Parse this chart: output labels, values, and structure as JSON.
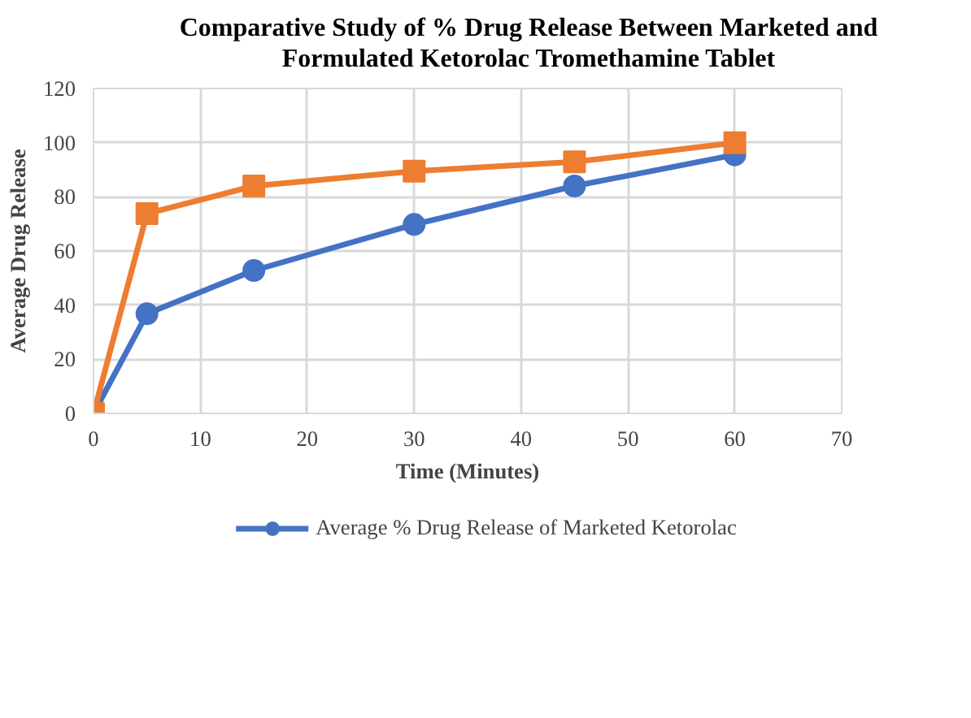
{
  "chart_data": {
    "type": "line",
    "title": "Comparative Study of % Drug Release Between Marketed and Formulated Ketorolac Tromethamine Tablet",
    "xlabel": "Time (Minutes)",
    "ylabel": "Average Drug Release",
    "x": [
      0,
      5,
      15,
      30,
      45,
      60
    ],
    "series": [
      {
        "name": "Average % Drug Release of Marketed Ketorolac",
        "color": "#4472c4",
        "marker": "circle",
        "values": [
          0,
          36.8,
          52.8,
          69.8,
          84,
          95.5
        ]
      },
      {
        "color": "#ed7d31",
        "marker": "square",
        "values": [
          0,
          73.8,
          84,
          89.5,
          92.9,
          100
        ]
      }
    ],
    "xlim": [
      0,
      70
    ],
    "xticks": [
      0,
      10,
      20,
      30,
      40,
      50,
      60,
      70
    ],
    "ylim": [
      0,
      120
    ],
    "yticks": [
      0,
      20,
      40,
      60,
      80,
      100,
      120
    ],
    "grid": true,
    "legend": "bottom",
    "line_style": "solid"
  }
}
